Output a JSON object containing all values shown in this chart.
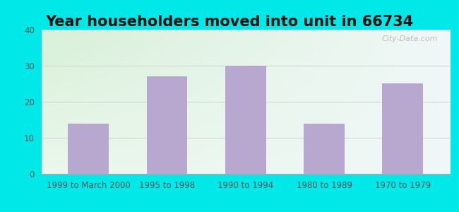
{
  "title": "Year householders moved into unit in 66734",
  "categories": [
    "1999 to March 2000",
    "1995 to 1998",
    "1990 to 1994",
    "1980 to 1989",
    "1970 to 1979"
  ],
  "values": [
    14,
    27,
    30,
    14,
    25
  ],
  "bar_color": "#b8a8d0",
  "ylim": [
    0,
    40
  ],
  "yticks": [
    0,
    10,
    20,
    30,
    40
  ],
  "background_outer": "#00e8e8",
  "background_inner_top_left": "#d8f0d8",
  "background_inner_top_right": "#f0f8f8",
  "background_inner_bottom": "#e8f4f0",
  "grid_color": "#d0d8d0",
  "title_fontsize": 15,
  "tick_fontsize": 8.5,
  "watermark_text": "City-Data.com"
}
